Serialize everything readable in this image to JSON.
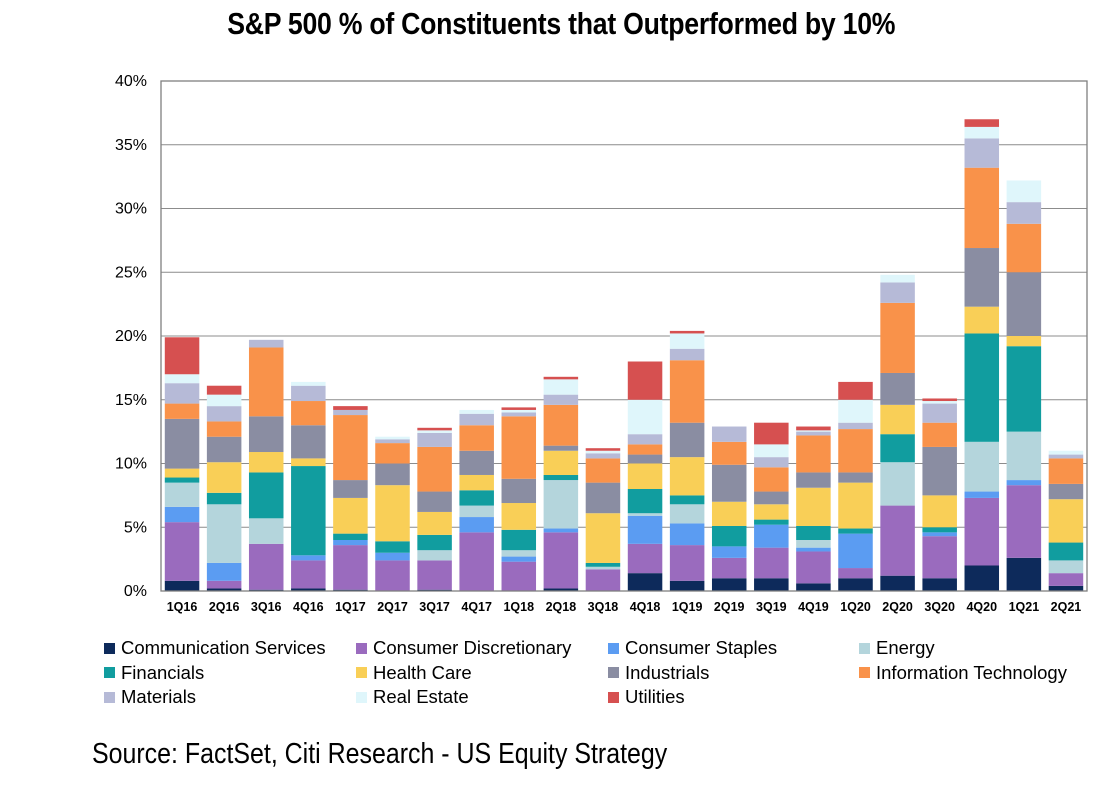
{
  "chart_data": {
    "type": "bar",
    "stacked": true,
    "title": "S&P 500 % of Constituents that Outperformed by 10%",
    "xlabel": "",
    "ylabel": "",
    "ylim": [
      0,
      40
    ],
    "yticks": [
      "0%",
      "5%",
      "10%",
      "15%",
      "20%",
      "25%",
      "30%",
      "35%",
      "40%"
    ],
    "grid": "horizontal",
    "legend_position": "bottom",
    "categories": [
      "1Q16",
      "2Q16",
      "3Q16",
      "4Q16",
      "1Q17",
      "2Q17",
      "3Q17",
      "4Q17",
      "1Q18",
      "2Q18",
      "3Q18",
      "4Q18",
      "1Q19",
      "2Q19",
      "3Q19",
      "4Q19",
      "1Q20",
      "2Q20",
      "3Q20",
      "4Q20",
      "1Q21",
      "2Q21"
    ],
    "series": [
      {
        "name": "Communication Services",
        "color": "#0d2a5b",
        "values": [
          0.8,
          0.2,
          0.1,
          0.2,
          0.1,
          0.0,
          0.1,
          0.0,
          0.0,
          0.2,
          0.0,
          1.4,
          0.8,
          1.0,
          1.0,
          0.6,
          1.0,
          1.2,
          1.0,
          2.0,
          2.6,
          0.4
        ]
      },
      {
        "name": "Consumer Discretionary",
        "color": "#9a6bbe",
        "values": [
          4.6,
          0.6,
          3.6,
          2.2,
          3.5,
          2.4,
          2.3,
          4.6,
          2.3,
          4.4,
          1.7,
          2.3,
          2.8,
          1.6,
          2.4,
          2.5,
          0.8,
          5.5,
          3.3,
          5.3,
          5.7,
          1.0
        ]
      },
      {
        "name": "Consumer Staples",
        "color": "#5b9cf2",
        "values": [
          1.2,
          1.4,
          0.0,
          0.4,
          0.4,
          0.6,
          0.0,
          1.2,
          0.4,
          0.3,
          0.0,
          2.2,
          1.7,
          0.9,
          1.8,
          0.3,
          2.7,
          0.0,
          0.3,
          0.5,
          0.4,
          0.0
        ]
      },
      {
        "name": "Energy",
        "color": "#b4d5dc",
        "values": [
          1.9,
          4.6,
          2.0,
          0.0,
          0.0,
          0.0,
          0.8,
          0.9,
          0.5,
          3.8,
          0.2,
          0.2,
          1.5,
          0.0,
          0.0,
          0.6,
          0.0,
          3.4,
          0.0,
          3.9,
          3.8,
          1.0
        ]
      },
      {
        "name": "Financials",
        "color": "#119d9f",
        "values": [
          0.4,
          0.9,
          3.6,
          7.0,
          0.5,
          0.9,
          1.2,
          1.2,
          1.6,
          0.4,
          0.3,
          1.9,
          0.7,
          1.6,
          0.4,
          1.1,
          0.4,
          2.2,
          0.4,
          8.5,
          6.7,
          1.4
        ]
      },
      {
        "name": "Health Care",
        "color": "#f9cf57",
        "values": [
          0.7,
          2.4,
          1.6,
          0.6,
          2.8,
          4.4,
          1.8,
          1.2,
          2.1,
          1.9,
          3.9,
          2.0,
          3.0,
          1.9,
          1.2,
          3.0,
          3.6,
          2.3,
          2.5,
          2.1,
          0.8,
          3.4
        ]
      },
      {
        "name": "Industrials",
        "color": "#8a8da2",
        "values": [
          3.9,
          2.0,
          2.8,
          2.6,
          1.4,
          1.7,
          1.6,
          1.9,
          1.9,
          0.4,
          2.4,
          0.7,
          2.7,
          2.9,
          1.0,
          1.2,
          0.8,
          2.5,
          3.8,
          4.6,
          5.0,
          1.2
        ]
      },
      {
        "name": "Information Technology",
        "color": "#f9924a",
        "values": [
          1.2,
          1.2,
          5.4,
          1.9,
          5.1,
          1.6,
          3.5,
          2.0,
          4.9,
          3.2,
          1.9,
          0.8,
          4.9,
          1.8,
          1.9,
          2.9,
          3.4,
          5.5,
          1.9,
          6.3,
          3.8,
          2.0
        ]
      },
      {
        "name": "Materials",
        "color": "#b6bad7",
        "values": [
          1.6,
          1.2,
          0.6,
          1.2,
          0.4,
          0.3,
          1.1,
          0.9,
          0.3,
          0.8,
          0.4,
          0.8,
          0.9,
          1.2,
          0.8,
          0.3,
          0.5,
          1.6,
          1.5,
          2.3,
          1.7,
          0.3
        ]
      },
      {
        "name": "Real Estate",
        "color": "#dff6fb",
        "values": [
          0.7,
          0.9,
          0.0,
          0.3,
          0.0,
          0.2,
          0.2,
          0.3,
          0.2,
          1.2,
          0.2,
          2.7,
          1.2,
          0.0,
          1.0,
          0.1,
          1.8,
          0.6,
          0.2,
          0.9,
          1.7,
          0.3
        ]
      },
      {
        "name": "Utilities",
        "color": "#d65050",
        "values": [
          2.9,
          0.7,
          0.0,
          0.0,
          0.3,
          0.0,
          0.2,
          0.0,
          0.2,
          0.2,
          0.2,
          3.0,
          0.2,
          0.0,
          1.7,
          0.3,
          1.4,
          0.0,
          0.2,
          0.6,
          0.0,
          0.0
        ]
      }
    ]
  },
  "source_note": "Source: FactSet, Citi Research - US Equity Strategy"
}
